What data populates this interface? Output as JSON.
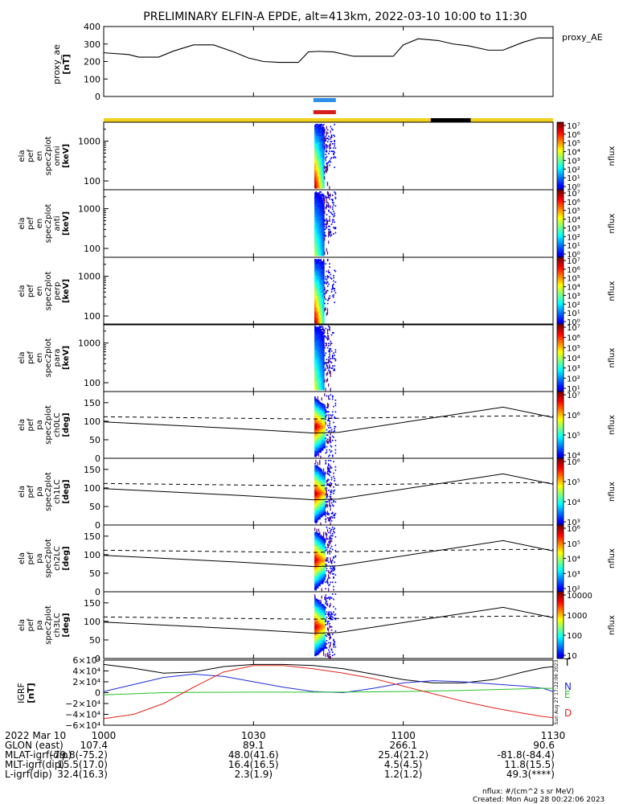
{
  "title": "PRELIMINARY ELFIN-A EPDE, alt=413km, 2022-03-10 10:00 to 11:30",
  "colors": {
    "ae": "#000000",
    "bar_blue": "#2f8fe8",
    "bar_red": "#d81c1c",
    "bar_yellow": "#f2d21a",
    "bar_black": "#000000",
    "lc_solid": "#000000",
    "lc_dashed": "#000000",
    "igrf_T": "#000000",
    "igrf_N": "#1e2bd6",
    "igrf_E": "#29c12a",
    "igrf_D": "#e2231a"
  },
  "time_axis": {
    "start_min": 600,
    "end_min": 690,
    "ticks": [
      {
        "v": 600,
        "label": "1000"
      },
      {
        "v": 630,
        "label": "1030"
      },
      {
        "v": 660,
        "label": "1100"
      },
      {
        "v": 690,
        "label": "1130"
      }
    ]
  },
  "bars": {
    "blue": [
      642.0,
      646.5
    ],
    "red": [
      642.0,
      646.5
    ],
    "yellow": [
      600,
      690
    ],
    "black": [
      665.5,
      673.5
    ]
  },
  "burst_window": [
    642.2,
    646.5
  ],
  "ae_panel": {
    "ylabel": "proxy_ae [nT]",
    "legend": "proxy_AE",
    "ylim": [
      0,
      400
    ],
    "yticks": [
      0,
      100,
      200,
      300,
      400
    ],
    "x": [
      600,
      605,
      607,
      611,
      614,
      618,
      622,
      626,
      629,
      632,
      635,
      639,
      641,
      643,
      646,
      650,
      654,
      658,
      660,
      663,
      667,
      670,
      673,
      677,
      680,
      684,
      687,
      690
    ],
    "y": [
      250,
      240,
      225,
      225,
      260,
      295,
      295,
      255,
      220,
      200,
      195,
      195,
      255,
      258,
      255,
      230,
      230,
      230,
      295,
      330,
      320,
      300,
      290,
      265,
      265,
      310,
      335,
      335
    ]
  },
  "spec_panels": [
    {
      "ylabel": [
        "ela",
        "pef",
        "en",
        "spec2plot",
        "omni",
        "[keV]"
      ],
      "ylim": [
        60,
        3000
      ],
      "yticks": [
        {
          "v": 100,
          "label": "100"
        },
        {
          "v": 1000,
          "label": "1000"
        }
      ],
      "cbar_ticks": [
        "10^0",
        "10^1",
        "10^2",
        "10^3",
        "10^4",
        "10^5",
        "10^6",
        "10^7"
      ],
      "cbar_label": "nflux",
      "intensity": 1.0
    },
    {
      "ylabel": [
        "ela",
        "pef",
        "en",
        "spec2plot",
        "anti",
        "[keV]"
      ],
      "ylim": [
        60,
        3000
      ],
      "yticks": [
        {
          "v": 100,
          "label": "100"
        },
        {
          "v": 1000,
          "label": "1000"
        }
      ],
      "cbar_ticks": [
        "10^0",
        "10^1",
        "10^2",
        "10^3",
        "10^4",
        "10^5",
        "10^6",
        "10^7"
      ],
      "cbar_label": "nflux",
      "intensity": 0.55
    },
    {
      "ylabel": [
        "ela",
        "pef",
        "en",
        "spec2plot",
        "perp",
        "[keV]"
      ],
      "ylim": [
        60,
        3000
      ],
      "yticks": [
        {
          "v": 100,
          "label": "100"
        },
        {
          "v": 1000,
          "label": "1000"
        }
      ],
      "cbar_ticks": [
        "10^0",
        "10^1",
        "10^2",
        "10^3",
        "10^4",
        "10^5",
        "10^6",
        "10^7"
      ],
      "cbar_label": "nflux",
      "intensity": 1.0
    },
    {
      "ylabel": [
        "ela",
        "pef",
        "en",
        "spec2plot",
        "para",
        "[keV]"
      ],
      "ylim": [
        60,
        3000
      ],
      "yticks": [
        {
          "v": 100,
          "label": "100"
        },
        {
          "v": 1000,
          "label": "1000"
        }
      ],
      "cbar_ticks": [
        "10^1",
        "10^2",
        "10^3",
        "10^4",
        "10^5",
        "10^6",
        "10^7"
      ],
      "cbar_label": "nflux",
      "intensity": 0.6
    }
  ],
  "pa_panels": [
    {
      "ylabel": [
        "ela",
        "pef",
        "pa",
        "spec2plot",
        "ch0LC",
        "[deg]"
      ],
      "cbar_ticks": [
        "10^4",
        "10^5",
        "10^6",
        "10^7"
      ],
      "cbar_label": "nflux"
    },
    {
      "ylabel": [
        "ela",
        "pef",
        "pa",
        "spec2plot",
        "ch1LC",
        "[deg]"
      ],
      "cbar_ticks": [
        "10^3",
        "10^4",
        "10^5",
        "10^6"
      ],
      "cbar_label": "nflux"
    },
    {
      "ylabel": [
        "ela",
        "pef",
        "pa",
        "spec2plot",
        "ch2LC",
        "[deg]"
      ],
      "cbar_ticks": [
        "10^2",
        "10^3",
        "10^4",
        "10^5",
        "10^6"
      ],
      "cbar_label": "nflux"
    },
    {
      "ylabel": [
        "ela",
        "pef",
        "pa",
        "spec2plot",
        "ch3LC",
        "[deg]"
      ],
      "cbar_ticks": [
        "10",
        "100",
        "1000",
        "10000"
      ],
      "cbar_label": "nflux"
    }
  ],
  "pa_axis": {
    "ylim": [
      0,
      180
    ],
    "yticks": [
      0,
      50,
      100,
      150
    ]
  },
  "lc_lines": {
    "x": [
      600,
      627,
      642,
      647,
      680,
      690
    ],
    "solid": [
      98,
      80,
      68,
      70,
      138,
      110
    ],
    "dashed_x": [
      600,
      627,
      642,
      647,
      680,
      690
    ],
    "dashed": [
      112,
      108,
      106,
      108,
      114,
      114
    ]
  },
  "igrf_panel": {
    "ylabel": "IGRF [nT]",
    "ylim": [
      -60000,
      60000
    ],
    "yticks": [
      {
        "v": 60000,
        "label": "6×10⁴"
      },
      {
        "v": 40000,
        "label": "4×10⁴"
      },
      {
        "v": 20000,
        "label": "2×10⁴"
      },
      {
        "v": 0,
        "label": "0"
      },
      {
        "v": -20000,
        "label": "−2×10⁴"
      },
      {
        "v": -40000,
        "label": "−4×10⁴"
      },
      {
        "v": -60000,
        "label": "−6×10⁴"
      }
    ],
    "legend": [
      "T",
      "N",
      "E",
      "D"
    ],
    "x": [
      600,
      606,
      612,
      618,
      624,
      630,
      636,
      642,
      648,
      654,
      660,
      666,
      672,
      678,
      684,
      688,
      690
    ],
    "T": [
      52000,
      45000,
      36000,
      38000,
      48000,
      52000,
      52000,
      50000,
      44000,
      34000,
      24000,
      18000,
      18000,
      24000,
      38000,
      46000,
      48000
    ],
    "N": [
      2000,
      15000,
      28000,
      34000,
      30000,
      20000,
      10000,
      2000,
      0,
      8000,
      18000,
      22000,
      20000,
      16000,
      12000,
      8000,
      2000
    ],
    "E": [
      -4000,
      -2000,
      0,
      500,
      800,
      1000,
      1000,
      1000,
      1200,
      1500,
      2000,
      3000,
      4000,
      5500,
      7000,
      8000,
      8000
    ],
    "D": [
      -48000,
      -40000,
      -20000,
      10000,
      38000,
      50000,
      50000,
      44000,
      36000,
      26000,
      12000,
      -2000,
      -16000,
      -28000,
      -38000,
      -44000,
      -46000
    ]
  },
  "side_text": "Sun Aug 27 17:22:06 2023",
  "footer": {
    "rows": [
      {
        "label": "2022 Mar 10",
        "values": [
          "1000",
          "1030",
          "1100",
          "1130"
        ]
      },
      {
        "label": "GLON (east)",
        "values": [
          "107.4",
          "89.1",
          "266.1",
          "90.6"
        ]
      },
      {
        "label": "MLAT-igrf(dip)",
        "values": [
          "-79.8(-75.2)",
          "48.0(41.6)",
          "25.4(21.2)",
          "-81.8(-84.4)"
        ]
      },
      {
        "label": "MLT-igrf(dip)",
        "values": [
          "15.5(17.0)",
          "16.4(16.5)",
          "4.5(4.5)",
          "11.8(15.5)"
        ]
      },
      {
        "label": "L-igrf(dip)",
        "values": [
          "32.4(16.3)",
          "2.3(1.9)",
          "1.2(1.2)",
          "49.3(****)"
        ]
      }
    ],
    "units_note": "nflux: #/(cm^2 s sr MeV)",
    "created": "Created: Mon Aug 28 00:22:06 2023"
  }
}
